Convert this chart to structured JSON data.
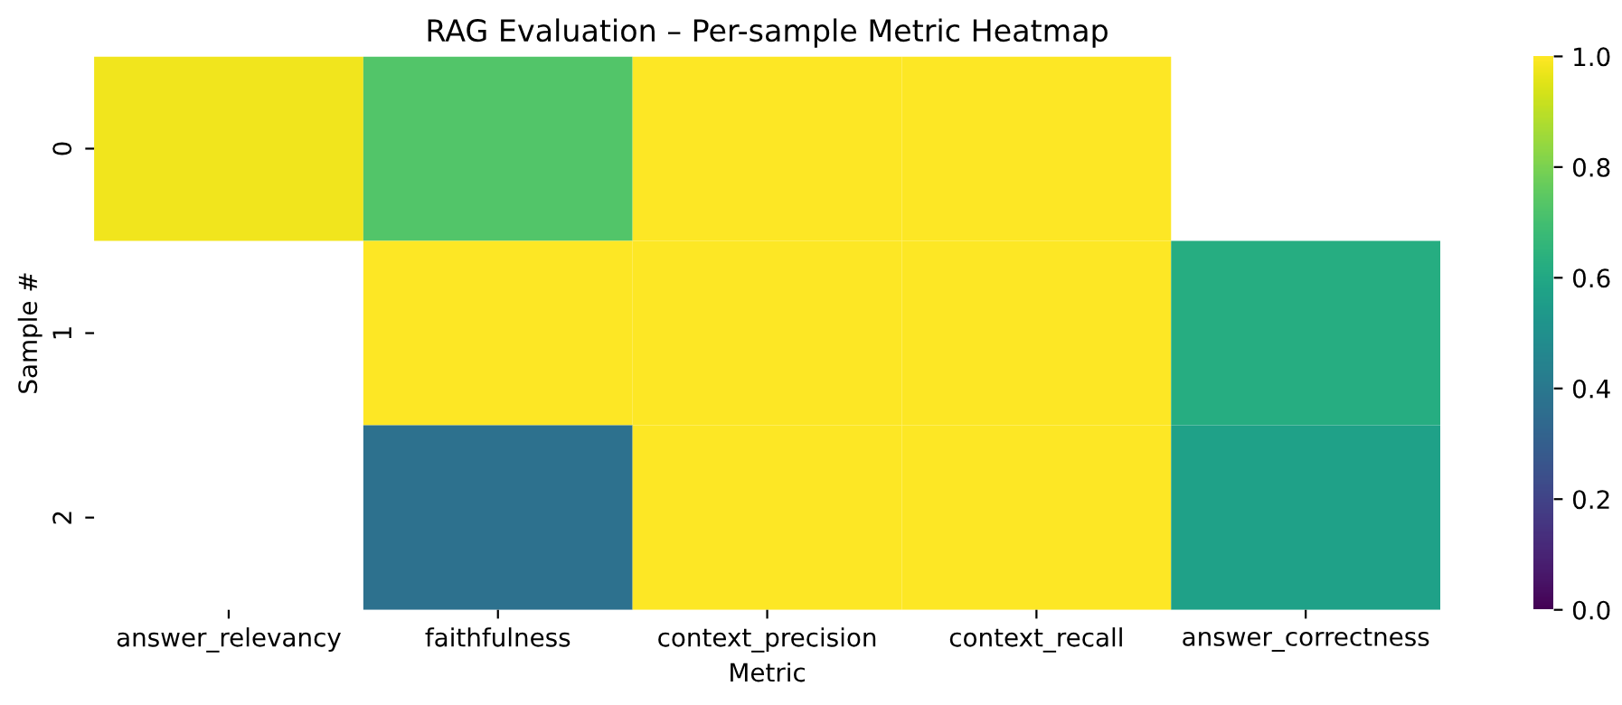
{
  "chart_data": {
    "type": "heatmap",
    "title": "RAG Evaluation – Per-sample Metric Heatmap",
    "xlabel": "Metric",
    "ylabel": "Sample #",
    "categories": [
      "answer_relevancy",
      "faithfulness",
      "context_precision",
      "context_recall",
      "answer_correctness"
    ],
    "y_categories": [
      "0",
      "1",
      "2"
    ],
    "cells": [
      [
        0.98,
        0.73,
        1.0,
        1.0,
        null
      ],
      [
        null,
        1.0,
        1.0,
        1.0,
        0.62
      ],
      [
        null,
        0.37,
        1.0,
        1.0,
        0.57
      ]
    ],
    "clim": [
      0,
      1
    ],
    "cticks": [
      {
        "value": 0,
        "label": "0.0"
      },
      0.2,
      0.4,
      0.6,
      0.8,
      {
        "value": 1,
        "label": "1.0"
      }
    ]
  }
}
